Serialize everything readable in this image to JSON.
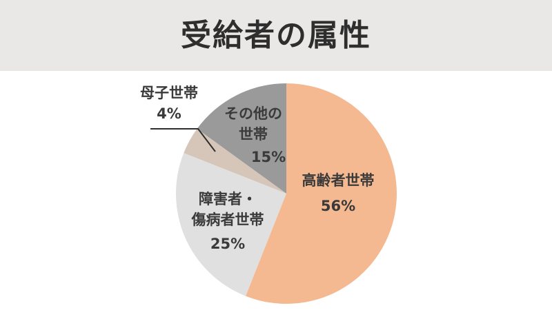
{
  "chart_data": {
    "type": "pie",
    "title": "受給者の属性",
    "categories": [
      "高齢者世帯",
      "障害者・\n傷病者世帯",
      "母子世帯",
      "その他の\n世帯"
    ],
    "values": [
      56,
      25,
      4,
      15
    ],
    "value_labels": [
      "56%",
      "25%",
      "4%",
      "15%"
    ],
    "colors": [
      "#f4b991",
      "#e0e0e0",
      "#d5c6b9",
      "#9a9a9a"
    ]
  }
}
